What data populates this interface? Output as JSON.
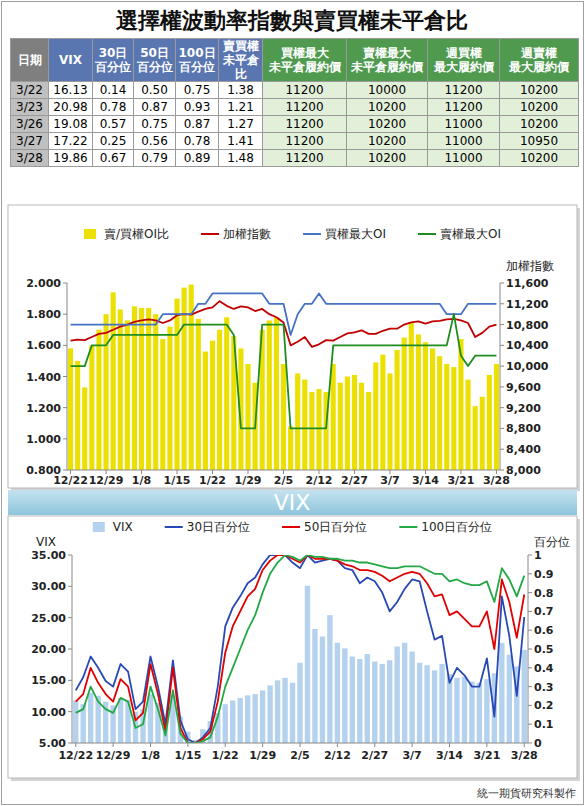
{
  "title": "選擇權波動率指數與賣買權未平倉比",
  "table": {
    "header": [
      "日期",
      "VIX",
      "30日\n百分位",
      "50日\n百分位",
      "100日\n百分位",
      "賣買權\n未平倉比",
      "買權最大\n未平倉履約價",
      "賣權最大\n未平倉履約價",
      "週買權\n最大履約價",
      "週賣權\n最大履約價"
    ],
    "rows": [
      [
        "3/22",
        "16.13",
        "0.14",
        "0.50",
        "0.75",
        "1.38",
        "11200",
        "10000",
        "11200",
        "10200"
      ],
      [
        "3/23",
        "20.98",
        "0.78",
        "0.87",
        "0.93",
        "1.21",
        "11200",
        "10200",
        "11200",
        "10200"
      ],
      [
        "3/26",
        "19.08",
        "0.57",
        "0.75",
        "0.87",
        "1.27",
        "11200",
        "10200",
        "11000",
        "10200"
      ],
      [
        "3/27",
        "17.22",
        "0.25",
        "0.56",
        "0.78",
        "1.41",
        "11200",
        "10200",
        "11000",
        "10950"
      ],
      [
        "3/28",
        "19.86",
        "0.67",
        "0.79",
        "0.89",
        "1.48",
        "11200",
        "10200",
        "11000",
        "10200"
      ]
    ]
  },
  "chart_data": [
    {
      "type": "bar",
      "y2_label": "加權指數",
      "legend": "top",
      "grid": false,
      "categories": [
        "12/22",
        null,
        null,
        null,
        null,
        "12/29",
        null,
        null,
        null,
        null,
        "1/8",
        null,
        null,
        null,
        null,
        "1/15",
        null,
        null,
        null,
        null,
        "1/22",
        null,
        null,
        null,
        null,
        "1/29",
        null,
        null,
        null,
        null,
        "2/5",
        null,
        null,
        null,
        null,
        "2/12",
        null,
        null,
        null,
        null,
        "2/27",
        null,
        null,
        null,
        null,
        "3/7",
        null,
        null,
        null,
        null,
        "3/14",
        null,
        null,
        null,
        null,
        "3/21",
        null,
        null,
        null,
        null,
        "3/28"
      ],
      "series": [
        {
          "name": "賣/買權OI比",
          "type": "bar",
          "color": "#ece000",
          "values": [
            1.58,
            1.5,
            1.33,
            1.6,
            1.7,
            1.8,
            1.94,
            1.83,
            1.76,
            1.85,
            1.84,
            1.84,
            1.8,
            1.64,
            1.72,
            1.9,
            1.97,
            1.99,
            1.77,
            1.56,
            1.63,
            1.7,
            1.78,
            1.66,
            1.58,
            1.48,
            1.36,
            1.7,
            1.76,
            1.78,
            1.48,
            1.08,
            1.42,
            1.38,
            1.3,
            1.32,
            1.3,
            1.48,
            1.36,
            1.4,
            1.41,
            1.36,
            1.3,
            1.49,
            1.54,
            1.42,
            1.57,
            1.65,
            1.75,
            1.67,
            1.62,
            1.58,
            1.53,
            1.48,
            1.46,
            1.64,
            1.38,
            1.21,
            1.27,
            1.41,
            1.48
          ]
        },
        {
          "name": "加權指數",
          "type": "line",
          "axis": "y2",
          "color": "#c00000",
          "values": [
            10490,
            10510,
            10500,
            10560,
            10620,
            10640,
            10700,
            10760,
            10800,
            10850,
            10880,
            10900,
            10880,
            10830,
            10880,
            10980,
            11000,
            10990,
            11050,
            11100,
            11130,
            11250,
            11160,
            11100,
            11150,
            11130,
            11060,
            11100,
            11000,
            10940,
            10840,
            10400,
            10470,
            10560,
            10370,
            10420,
            10500,
            10490,
            10560,
            10630,
            10650,
            10690,
            10620,
            10620,
            10680,
            10720,
            10720,
            10800,
            10840,
            10860,
            10820,
            10860,
            10870,
            10900,
            10910,
            10880,
            10830,
            10560,
            10640,
            10760,
            10800
          ]
        },
        {
          "name": "買權最大OI",
          "type": "line",
          "axis": "y2",
          "color": "#4472c4",
          "values": [
            10800,
            10800,
            10800,
            10800,
            10800,
            10800,
            10800,
            10800,
            10800,
            10800,
            10800,
            10800,
            10800,
            11000,
            11000,
            11000,
            11000,
            11000,
            11200,
            11200,
            11400,
            11400,
            11400,
            11400,
            11400,
            11400,
            11400,
            11400,
            11200,
            11200,
            11200,
            10600,
            11000,
            11200,
            11200,
            11400,
            11200,
            11200,
            11200,
            11200,
            11200,
            11200,
            11200,
            11200,
            11200,
            11200,
            11200,
            11200,
            11200,
            11200,
            11200,
            11200,
            11200,
            11000,
            11000,
            11000,
            11200,
            11200,
            11200,
            11200,
            11200
          ]
        },
        {
          "name": "賣權最大OI",
          "type": "line",
          "axis": "y2",
          "color": "#1e8c1e",
          "values": [
            10000,
            10000,
            10000,
            10400,
            10400,
            10400,
            10600,
            10600,
            10600,
            10600,
            10600,
            10600,
            10600,
            10600,
            10600,
            10600,
            10800,
            10800,
            10800,
            10800,
            10800,
            10800,
            10800,
            10600,
            8800,
            8800,
            8800,
            10800,
            10800,
            10800,
            10800,
            8800,
            8800,
            8800,
            8800,
            8800,
            8800,
            10400,
            10400,
            10400,
            10400,
            10400,
            10400,
            10400,
            10400,
            10400,
            10400,
            10400,
            10400,
            10400,
            10400,
            10400,
            10400,
            10400,
            11000,
            10200,
            10000,
            10200,
            10200,
            10200,
            10200
          ]
        }
      ],
      "ylim": [
        0.8,
        2.0
      ],
      "yticks": [
        {
          "value": 0.8,
          "label": "0.800"
        },
        {
          "value": 1,
          "label": "1.000"
        },
        {
          "value": 1.2,
          "label": "1.200"
        },
        {
          "value": 1.4,
          "label": "1.400"
        },
        {
          "value": 1.6,
          "label": "1.600"
        },
        {
          "value": 1.8,
          "label": "1.800"
        },
        {
          "value": 2,
          "label": "2.000"
        }
      ],
      "y2lim": [
        8000,
        11600
      ],
      "y2ticks": [
        {
          "value": 8000,
          "label": "8,000"
        },
        {
          "value": 8400,
          "label": "8,400"
        },
        {
          "value": 8800,
          "label": "8,800"
        },
        {
          "value": 9200,
          "label": "9,200"
        },
        {
          "value": 9600,
          "label": "9,600"
        },
        {
          "value": 10000,
          "label": "10,000"
        },
        {
          "value": 10400,
          "label": "10,400"
        },
        {
          "value": 10800,
          "label": "10,800"
        },
        {
          "value": 11200,
          "label": "11,200"
        },
        {
          "value": 11600,
          "label": "11,600"
        }
      ]
    },
    {
      "type": "bar",
      "y_label": "VIX",
      "y2_label": "百分位",
      "legend": "top",
      "grid": false,
      "categories": [
        "12/22",
        null,
        null,
        null,
        null,
        "12/29",
        null,
        null,
        null,
        null,
        "1/8",
        null,
        null,
        null,
        null,
        "1/15",
        null,
        null,
        null,
        null,
        "1/22",
        null,
        null,
        null,
        null,
        "1/29",
        null,
        null,
        null,
        null,
        "2/5",
        null,
        null,
        null,
        null,
        "2/12",
        null,
        null,
        null,
        null,
        "2/27",
        null,
        null,
        null,
        null,
        "3/7",
        null,
        null,
        null,
        null,
        "3/14",
        null,
        null,
        null,
        null,
        "3/21",
        null,
        null,
        null,
        null,
        "3/28"
      ],
      "series": [
        {
          "name": "VIX",
          "type": "bar",
          "color": "#b4d2ee",
          "values": [
            11.8,
            11.2,
            13.0,
            12.5,
            11.6,
            11.0,
            12.2,
            11.9,
            10.0,
            10.4,
            12.8,
            11.4,
            9.0,
            12.6,
            9.2,
            6.8,
            5.5,
            7.2,
            8.5,
            9.8,
            11.2,
            11.8,
            12.2,
            12.6,
            12.8,
            13.4,
            14.2,
            15.0,
            15.4,
            14.6,
            17.8,
            30.1,
            23.2,
            22.0,
            25.4,
            21.0,
            20.1,
            18.8,
            18.4,
            19.2,
            18.0,
            17.6,
            18.2,
            20.4,
            21.0,
            19.6,
            17.8,
            17.4,
            16.6,
            17.6,
            16.0,
            15.4,
            15.6,
            14.8,
            14.6,
            15.2,
            16.13,
            20.98,
            19.08,
            17.22,
            19.86
          ]
        },
        {
          "name": "30日百分位",
          "type": "line",
          "axis": "y2",
          "color": "#2748b5",
          "values": [
            0.28,
            0.35,
            0.46,
            0.4,
            0.33,
            0.3,
            0.42,
            0.38,
            0.18,
            0.22,
            0.46,
            0.3,
            0.1,
            0.44,
            0.12,
            0.02,
            0,
            0.03,
            0.08,
            0.3,
            0.62,
            0.72,
            0.78,
            0.85,
            0.88,
            0.95,
            1,
            1,
            1,
            0.96,
            0.93,
            1,
            0.96,
            0.97,
            0.98,
            0.97,
            0.93,
            0.92,
            0.85,
            0.88,
            0.86,
            0.8,
            0.7,
            0.75,
            0.82,
            0.87,
            0.86,
            0.7,
            0.55,
            0.57,
            0.32,
            0.4,
            0.36,
            0.3,
            0.3,
            0.45,
            0.14,
            0.78,
            0.57,
            0.25,
            0.67
          ]
        },
        {
          "name": "50日百分位",
          "type": "line",
          "axis": "y2",
          "color": "#e00000",
          "values": [
            0.22,
            0.26,
            0.4,
            0.32,
            0.26,
            0.22,
            0.34,
            0.3,
            0.12,
            0.16,
            0.42,
            0.26,
            0.06,
            0.4,
            0.08,
            0,
            0,
            0.02,
            0.06,
            0.22,
            0.48,
            0.62,
            0.7,
            0.78,
            0.82,
            0.92,
            0.97,
            1,
            1,
            0.98,
            0.96,
            1,
            0.98,
            0.98,
            0.98,
            0.97,
            0.95,
            0.94,
            0.92,
            0.92,
            0.91,
            0.89,
            0.86,
            0.88,
            0.9,
            0.91,
            0.9,
            0.85,
            0.78,
            0.79,
            0.68,
            0.7,
            0.66,
            0.62,
            0.62,
            0.7,
            0.5,
            0.87,
            0.75,
            0.56,
            0.79
          ]
        },
        {
          "name": "100日百分位",
          "type": "line",
          "axis": "y2",
          "color": "#22a844",
          "values": [
            0.16,
            0.18,
            0.3,
            0.22,
            0.18,
            0.16,
            0.24,
            0.22,
            0.08,
            0.1,
            0.3,
            0.18,
            0.04,
            0.28,
            0.05,
            0,
            0,
            0.01,
            0.03,
            0.14,
            0.3,
            0.4,
            0.5,
            0.6,
            0.68,
            0.8,
            0.9,
            0.96,
            1,
            0.99,
            0.97,
            1,
            0.99,
            0.99,
            0.98,
            0.98,
            0.97,
            0.97,
            0.96,
            0.96,
            0.95,
            0.94,
            0.93,
            0.93,
            0.94,
            0.94,
            0.94,
            0.92,
            0.9,
            0.9,
            0.86,
            0.87,
            0.85,
            0.84,
            0.84,
            0.86,
            0.75,
            0.93,
            0.87,
            0.78,
            0.89
          ]
        }
      ],
      "ylim": [
        5,
        35
      ],
      "yticks": [
        {
          "value": 5,
          "label": "5.00"
        },
        {
          "value": 10,
          "label": "10.00"
        },
        {
          "value": 15,
          "label": "15.00"
        },
        {
          "value": 20,
          "label": "20.00"
        },
        {
          "value": 25,
          "label": "25.00"
        },
        {
          "value": 30,
          "label": "30.00"
        },
        {
          "value": 35,
          "label": "35.00"
        }
      ],
      "y2lim": [
        0,
        1
      ],
      "y2ticks": [
        0,
        0.1,
        0.2,
        0.3,
        0.4,
        0.5,
        0.6,
        0.7,
        0.8,
        0.9,
        1
      ]
    }
  ],
  "banner": "VIX",
  "footer": "統一期貨研究科製作"
}
